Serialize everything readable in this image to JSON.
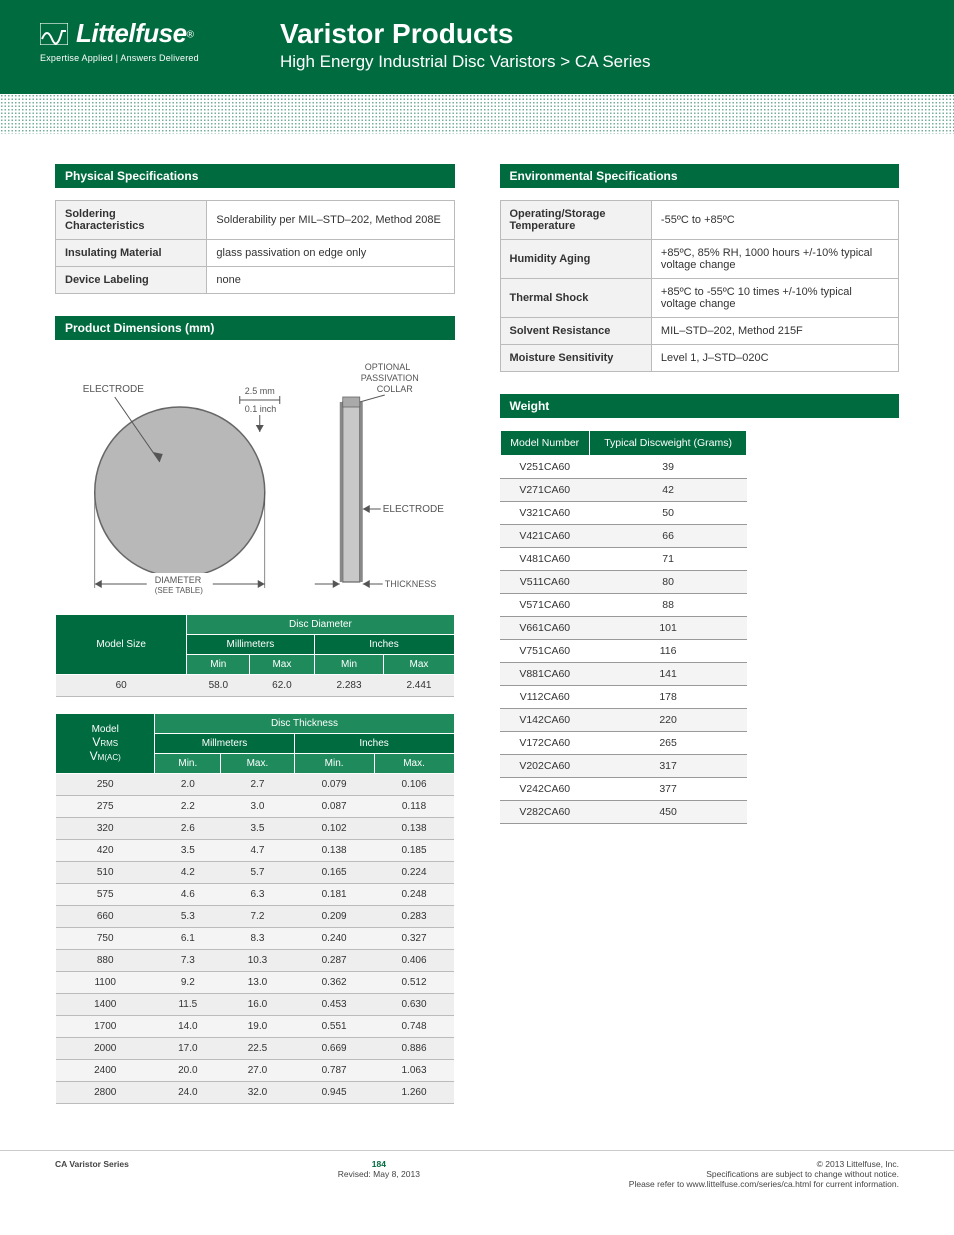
{
  "header": {
    "brand": "Littelfuse",
    "tagline": "Expertise Applied | Answers Delivered",
    "title": "Varistor Products",
    "subtitle": "High Energy Industrial Disc Varistors  >  CA Series"
  },
  "sections": {
    "physical": "Physical Specifications",
    "dimensions": "Product Dimensions (mm)",
    "environmental": "Environmental Specifications",
    "weight": "Weight"
  },
  "physical_specs": {
    "rows": [
      {
        "k": "Soldering Characteristics",
        "v": "Solderability per MIL–STD–202, Method 208E"
      },
      {
        "k": "Insulating Material",
        "v": "glass passivation on edge only"
      },
      {
        "k": "Device Labeling",
        "v": "none"
      }
    ]
  },
  "diagram": {
    "electrode_label": "ELECTRODE",
    "electrode_label2": "ELECTRODE",
    "collar_label1": "OPTIONAL",
    "collar_label2": "PASSIVATION",
    "collar_label3": "COLLAR",
    "dim_mm": "2.5 mm",
    "dim_in": "0.1 inch",
    "diameter_label": "DIAMETER",
    "see_table": "(SEE TABLE)",
    "thickness_label": "THICKNESS",
    "colors": {
      "disc_fill": "#b8b8b8",
      "disc_stroke": "#666",
      "side_fill": "#c8c8c8",
      "arrow": "#555",
      "text": "#555"
    }
  },
  "disc_diameter": {
    "headers": {
      "model": "Model Size",
      "group": "Disc Diameter",
      "mm": "Millimeters",
      "in": "Inches",
      "min": "Min",
      "max": "Max"
    },
    "rows": [
      {
        "model": "60",
        "mm_min": "58.0",
        "mm_max": "62.0",
        "in_min": "2.283",
        "in_max": "2.441"
      }
    ]
  },
  "disc_thickness": {
    "headers": {
      "model_l1": "Model",
      "model_l2v": "V",
      "model_l2rms": "RMS",
      "model_l3v": "V",
      "model_l3mac": "M(AC)",
      "group": "Disc Thickness",
      "mm": "Millmeters",
      "in": "Inches",
      "min": "Min.",
      "max": "Max."
    },
    "rows": [
      {
        "m": "250",
        "a": "2.0",
        "b": "2.7",
        "c": "0.079",
        "d": "0.106"
      },
      {
        "m": "275",
        "a": "2.2",
        "b": "3.0",
        "c": "0.087",
        "d": "0.118"
      },
      {
        "m": "320",
        "a": "2.6",
        "b": "3.5",
        "c": "0.102",
        "d": "0.138"
      },
      {
        "m": "420",
        "a": "3.5",
        "b": "4.7",
        "c": "0.138",
        "d": "0.185"
      },
      {
        "m": "510",
        "a": "4.2",
        "b": "5.7",
        "c": "0.165",
        "d": "0.224"
      },
      {
        "m": "575",
        "a": "4.6",
        "b": "6.3",
        "c": "0.181",
        "d": "0.248"
      },
      {
        "m": "660",
        "a": "5.3",
        "b": "7.2",
        "c": "0.209",
        "d": "0.283"
      },
      {
        "m": "750",
        "a": "6.1",
        "b": "8.3",
        "c": "0.240",
        "d": "0.327"
      },
      {
        "m": "880",
        "a": "7.3",
        "b": "10.3",
        "c": "0.287",
        "d": "0.406"
      },
      {
        "m": "1100",
        "a": "9.2",
        "b": "13.0",
        "c": "0.362",
        "d": "0.512"
      },
      {
        "m": "1400",
        "a": "11.5",
        "b": "16.0",
        "c": "0.453",
        "d": "0.630"
      },
      {
        "m": "1700",
        "a": "14.0",
        "b": "19.0",
        "c": "0.551",
        "d": "0.748"
      },
      {
        "m": "2000",
        "a": "17.0",
        "b": "22.5",
        "c": "0.669",
        "d": "0.886"
      },
      {
        "m": "2400",
        "a": "20.0",
        "b": "27.0",
        "c": "0.787",
        "d": "1.063"
      },
      {
        "m": "2800",
        "a": "24.0",
        "b": "32.0",
        "c": "0.945",
        "d": "1.260"
      }
    ]
  },
  "environmental_specs": {
    "rows": [
      {
        "k": "Operating/Storage Temperature",
        "v": "-55ºC to +85ºC"
      },
      {
        "k": "Humidity Aging",
        "v": "+85ºC, 85% RH, 1000 hours +/-10% typical voltage change"
      },
      {
        "k": "Thermal Shock",
        "v": "+85ºC to -55ºC 10 times +/-10% typical voltage change"
      },
      {
        "k": "Solvent Resistance",
        "v": "MIL–STD–202, Method 215F"
      },
      {
        "k": "Moisture Sensitivity",
        "v": "Level 1, J–STD–020C"
      }
    ]
  },
  "weight": {
    "headers": {
      "model": "Model Number",
      "wt": "Typical Discweight (Grams)"
    },
    "rows": [
      {
        "m": "V251CA60",
        "w": "39"
      },
      {
        "m": "V271CA60",
        "w": "42"
      },
      {
        "m": "V321CA60",
        "w": "50"
      },
      {
        "m": "V421CA60",
        "w": "66"
      },
      {
        "m": "V481CA60",
        "w": "71"
      },
      {
        "m": "V511CA60",
        "w": "80"
      },
      {
        "m": "V571CA60",
        "w": "88"
      },
      {
        "m": "V661CA60",
        "w": "101"
      },
      {
        "m": "V751CA60",
        "w": "116"
      },
      {
        "m": "V881CA60",
        "w": "141"
      },
      {
        "m": "V112CA60",
        "w": "178"
      },
      {
        "m": "V142CA60",
        "w": "220"
      },
      {
        "m": "V172CA60",
        "w": "265"
      },
      {
        "m": "V202CA60",
        "w": "317"
      },
      {
        "m": "V242CA60",
        "w": "377"
      },
      {
        "m": "V282CA60",
        "w": "450"
      }
    ]
  },
  "footer": {
    "left": "CA Varistor Series",
    "page": "184",
    "revised": "Revised: May 8, 2013",
    "copy": "© 2013 Littelfuse, Inc.",
    "note1": "Specifications are subject to change without notice.",
    "note2": "Please refer to www.littelfuse.com/series/ca.html for current information."
  }
}
